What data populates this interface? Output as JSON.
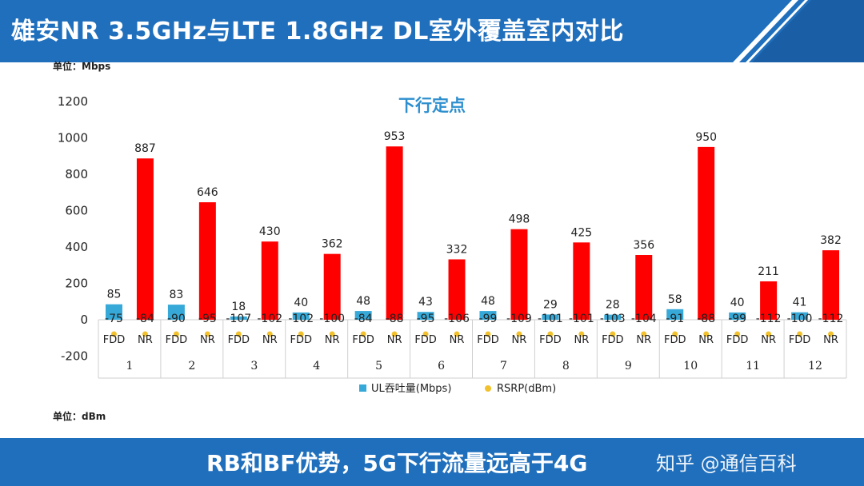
{
  "header": {
    "title": "雄安NR 3.5GHz与LTE 1.8GHz DL室外覆盖室内对比",
    "accent": "#1f6fbd",
    "stripes": "#ffffff"
  },
  "units": {
    "top": "单位：Mbps",
    "bottom": "单位：dBm"
  },
  "footer": {
    "caption": "RB和BF优势，5G下行流量远高于4G",
    "watermark": "知乎 @通信百科"
  },
  "chart_data": {
    "type": "bar",
    "title": "下行定点",
    "ylim": [
      -200,
      1200
    ],
    "yticks": [
      "1200",
      "1000",
      "800",
      "600",
      "400",
      "200",
      "0",
      "-200"
    ],
    "groups": [
      "1",
      "2",
      "3",
      "4",
      "5",
      "6",
      "7",
      "8",
      "9",
      "10",
      "11",
      "12"
    ],
    "subcategories": [
      "FDD",
      "NR"
    ],
    "series": [
      {
        "name": "UL吞吐量(Mbps)",
        "color_fdd": "#36a9d8",
        "color_nr": "#ff0000",
        "fdd": [
          85,
          83,
          18,
          40,
          48,
          43,
          48,
          29,
          28,
          58,
          40,
          41
        ],
        "nr": [
          887,
          646,
          430,
          362,
          953,
          332,
          498,
          425,
          356,
          950,
          211,
          382
        ]
      },
      {
        "name": "RSRP(dBm)",
        "color": "#f2c12e",
        "fdd": [
          -75,
          -90,
          -107,
          -102,
          -84,
          -95,
          -99,
          -101,
          -103,
          -91,
          -99,
          -100
        ],
        "nr": [
          -84,
          -95,
          -102,
          -100,
          -88,
          -106,
          -109,
          -101,
          -104,
          -88,
          -112,
          -112
        ]
      }
    ],
    "legend_position": "bottom",
    "title_color": "#2e8fcf",
    "gridlines": false
  }
}
